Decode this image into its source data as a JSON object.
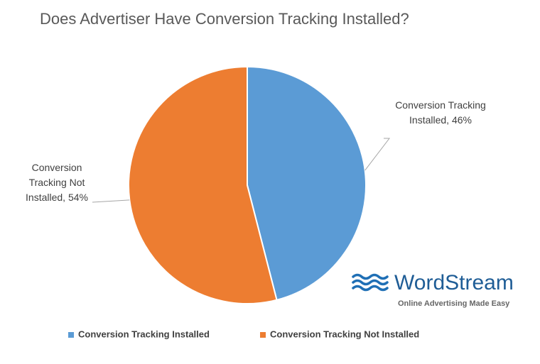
{
  "chart_data": {
    "type": "pie",
    "title": "Does Advertiser Have Conversion Tracking Installed?",
    "categories": [
      "Conversion Tracking Installed",
      "Conversion Tracking Not Installed"
    ],
    "values": [
      46,
      54
    ],
    "value_labels": [
      "Conversion Tracking Installed, 46%",
      "Conversion Tracking Not Installed, 54%"
    ],
    "colors": [
      "#5b9bd5",
      "#ed7d31"
    ],
    "legend": "bottom"
  },
  "logo": {
    "name": "WordStream",
    "tagline": "Online Advertising Made Easy"
  }
}
